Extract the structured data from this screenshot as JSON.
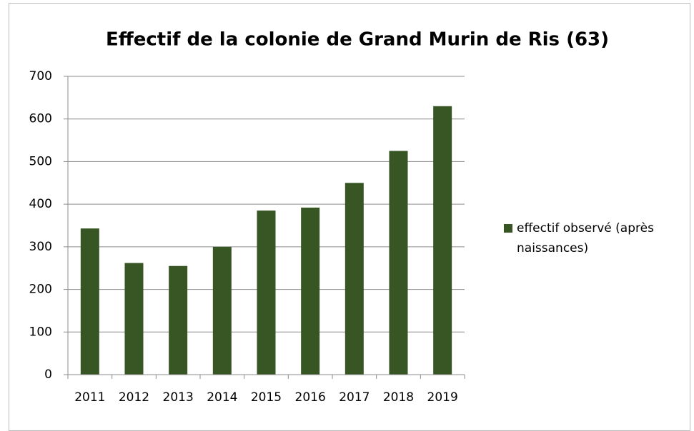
{
  "chart_data": {
    "type": "bar",
    "title": "Effectif de la colonie de Grand Murin de Ris (63)",
    "categories": [
      "2011",
      "2012",
      "2013",
      "2014",
      "2015",
      "2016",
      "2017",
      "2018",
      "2019"
    ],
    "series": [
      {
        "name": "effectif observé (après naissances)",
        "color": "#375623",
        "values": [
          343,
          262,
          255,
          300,
          385,
          392,
          450,
          525,
          630
        ]
      }
    ],
    "ylim": [
      0,
      700
    ],
    "yticks": [
      0,
      100,
      200,
      300,
      400,
      500,
      600,
      700
    ],
    "grid": true,
    "legend": "right"
  }
}
